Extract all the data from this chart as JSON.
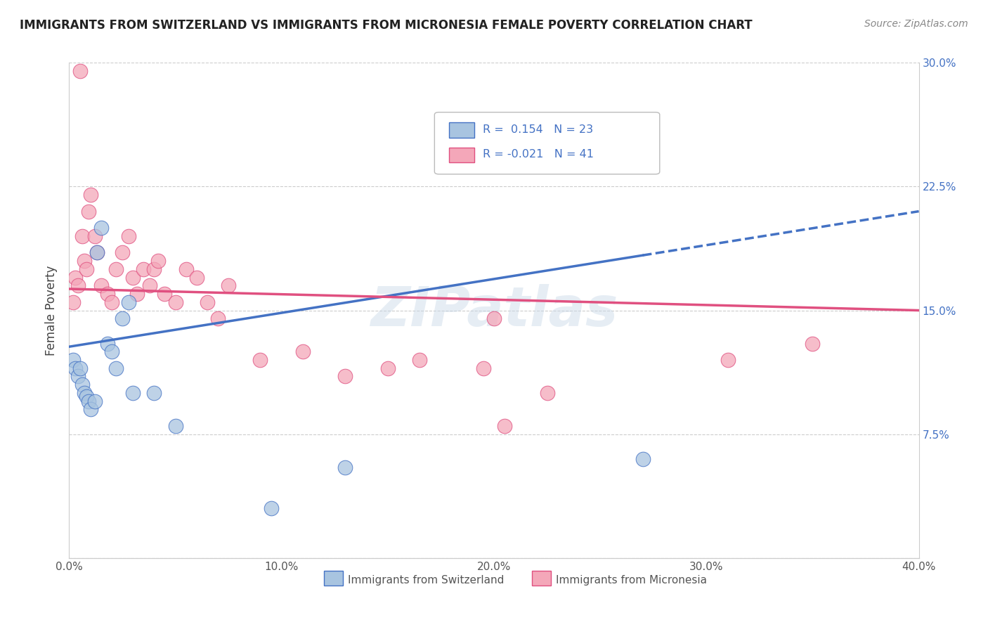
{
  "title": "IMMIGRANTS FROM SWITZERLAND VS IMMIGRANTS FROM MICRONESIA FEMALE POVERTY CORRELATION CHART",
  "source": "Source: ZipAtlas.com",
  "ylabel": "Female Poverty",
  "legend_label_1": "Immigrants from Switzerland",
  "legend_label_2": "Immigrants from Micronesia",
  "r1": 0.154,
  "n1": 23,
  "r2": -0.021,
  "n2": 41,
  "xlim": [
    0.0,
    0.4
  ],
  "ylim": [
    0.0,
    0.3
  ],
  "xticks": [
    0.0,
    0.1,
    0.2,
    0.3,
    0.4
  ],
  "yticks": [
    0.0,
    0.075,
    0.15,
    0.225,
    0.3
  ],
  "xticklabels": [
    "0.0%",
    "10.0%",
    "20.0%",
    "30.0%",
    "40.0%"
  ],
  "yticklabels_right": [
    "",
    "7.5%",
    "15.0%",
    "22.5%",
    "30.0%"
  ],
  "color_swiss": "#a8c4e0",
  "color_micronesia": "#f4a7b9",
  "line_color_swiss": "#4472c4",
  "line_color_micronesia": "#e05080",
  "background_color": "#ffffff",
  "scatter_swiss_x": [
    0.002,
    0.003,
    0.004,
    0.005,
    0.006,
    0.007,
    0.008,
    0.009,
    0.01,
    0.012,
    0.013,
    0.015,
    0.018,
    0.02,
    0.022,
    0.025,
    0.028,
    0.03,
    0.04,
    0.05,
    0.095,
    0.13,
    0.27
  ],
  "scatter_swiss_y": [
    0.12,
    0.115,
    0.11,
    0.115,
    0.105,
    0.1,
    0.098,
    0.095,
    0.09,
    0.095,
    0.185,
    0.2,
    0.13,
    0.125,
    0.115,
    0.145,
    0.155,
    0.1,
    0.1,
    0.08,
    0.03,
    0.055,
    0.06
  ],
  "scatter_micro_x": [
    0.002,
    0.003,
    0.004,
    0.005,
    0.006,
    0.007,
    0.008,
    0.009,
    0.01,
    0.012,
    0.013,
    0.015,
    0.018,
    0.02,
    0.022,
    0.025,
    0.028,
    0.03,
    0.032,
    0.035,
    0.038,
    0.04,
    0.042,
    0.045,
    0.05,
    0.055,
    0.06,
    0.065,
    0.07,
    0.075,
    0.09,
    0.11,
    0.13,
    0.15,
    0.165,
    0.195,
    0.2,
    0.205,
    0.225,
    0.31,
    0.35
  ],
  "scatter_micro_y": [
    0.155,
    0.17,
    0.165,
    0.295,
    0.195,
    0.18,
    0.175,
    0.21,
    0.22,
    0.195,
    0.185,
    0.165,
    0.16,
    0.155,
    0.175,
    0.185,
    0.195,
    0.17,
    0.16,
    0.175,
    0.165,
    0.175,
    0.18,
    0.16,
    0.155,
    0.175,
    0.17,
    0.155,
    0.145,
    0.165,
    0.12,
    0.125,
    0.11,
    0.115,
    0.12,
    0.115,
    0.145,
    0.08,
    0.1,
    0.12,
    0.13
  ],
  "line_swiss_x0": 0.0,
  "line_swiss_y0": 0.128,
  "line_swiss_x1": 0.4,
  "line_swiss_y1": 0.21,
  "line_swiss_solid_end": 0.27,
  "line_micro_x0": 0.0,
  "line_micro_y0": 0.163,
  "line_micro_x1": 0.4,
  "line_micro_y1": 0.15
}
